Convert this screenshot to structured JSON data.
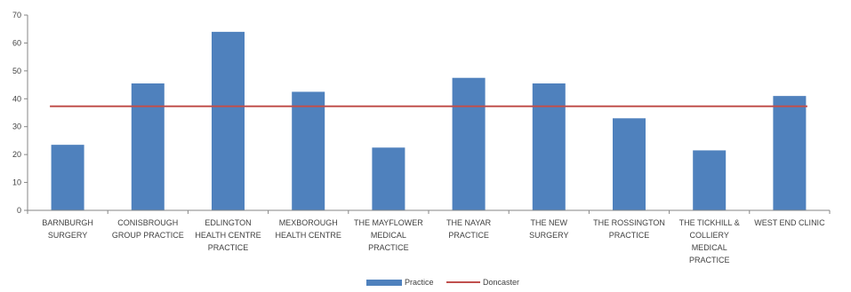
{
  "chart_data": {
    "type": "bar",
    "categories": [
      [
        "BARNBURGH",
        "SURGERY"
      ],
      [
        "CONISBROUGH",
        "GROUP PRACTICE"
      ],
      [
        "EDLINGTON",
        "HEALTH CENTRE",
        "PRACTICE"
      ],
      [
        "MEXBOROUGH",
        "HEALTH CENTRE"
      ],
      [
        "THE MAYFLOWER",
        "MEDICAL",
        "PRACTICE"
      ],
      [
        "THE NAYAR",
        "PRACTICE"
      ],
      [
        "THE NEW",
        "SURGERY"
      ],
      [
        "THE ROSSINGTON",
        "PRACTICE"
      ],
      [
        "THE TICKHILL &",
        "COLLIERY",
        "MEDICAL",
        "PRACTICE"
      ],
      [
        "WEST END CLINIC"
      ]
    ],
    "series": [
      {
        "name": "Practice",
        "type": "bar",
        "color": "#4F81BD",
        "values": [
          23.5,
          45.5,
          64,
          42.5,
          22.5,
          47.5,
          45.5,
          33,
          21.5,
          41
        ]
      },
      {
        "name": "Doncaster",
        "type": "line",
        "color": "#C0504D",
        "values": [
          37.3,
          37.3,
          37.3,
          37.3,
          37.3,
          37.3,
          37.3,
          37.3,
          37.3,
          37.3
        ]
      }
    ],
    "y_ticks": [
      "0",
      "10",
      "20",
      "30",
      "40",
      "50",
      "60",
      "70"
    ],
    "ylim": [
      0,
      70
    ],
    "grid": false,
    "legend_position": "bottom"
  }
}
